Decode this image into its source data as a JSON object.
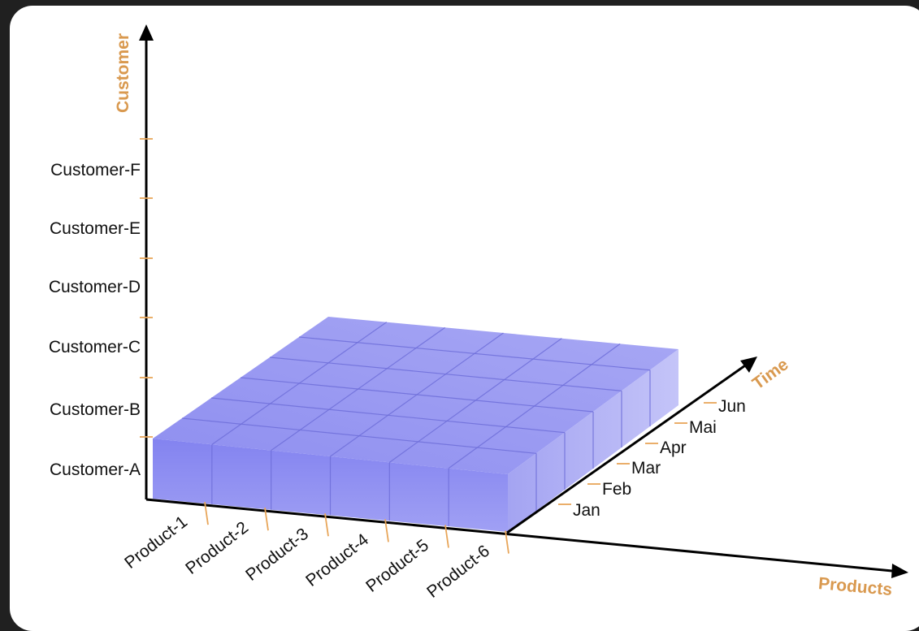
{
  "axes": {
    "customer": {
      "title": "Customer",
      "labels": [
        "Customer-A",
        "Customer-B",
        "Customer-C",
        "Customer-D",
        "Customer-E",
        "Customer-F"
      ]
    },
    "products": {
      "title": "Products",
      "labels": [
        "Product-1",
        "Product-2",
        "Product-3",
        "Product-4",
        "Product-5",
        "Product-6"
      ]
    },
    "time": {
      "title": "Time",
      "labels": [
        "Jan",
        "Feb",
        "Mar",
        "Apr",
        "Mai",
        "Jun"
      ]
    }
  },
  "cube": {
    "colors": {
      "top": "#9b9bf0",
      "front": "#8e8ef2",
      "side": "#b2b2f4",
      "grid": "#6e6ed9"
    }
  }
}
